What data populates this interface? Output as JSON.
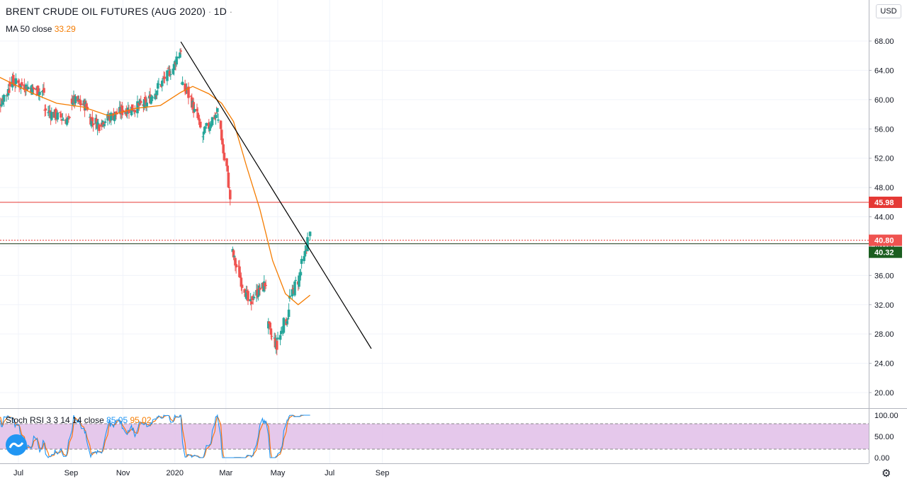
{
  "header": {
    "title": "BRENT CRUDE OIL FUTURES (AUG 2020)",
    "sep": "·",
    "interval": "1D",
    "ma_label": "MA 50 close",
    "ma_value": "33.29"
  },
  "stoch": {
    "label": "Stoch RSI 3 3 14 14 close",
    "k_value": "85.05",
    "d_value": "95.02"
  },
  "currency": "USD",
  "colors": {
    "up": "#26a69a",
    "down": "#ef5350",
    "ma": "#f57c00",
    "stoch_k": "#2196f3",
    "stoch_d": "#ff6d00",
    "stoch_band": "#e1bee7",
    "resistance": "#e53935",
    "support": "#1b3a1b",
    "trendline": "#000000"
  },
  "chart_data": [
    {
      "type": "candlestick",
      "y_ticks": [
        "68.00",
        "64.00",
        "60.00",
        "56.00",
        "52.00",
        "48.00",
        "44.00",
        "40.00",
        "36.00",
        "32.00",
        "28.00",
        "24.00",
        "20.00"
      ],
      "x_ticks": [
        "Jul",
        "Sep",
        "Nov",
        "2020",
        "Mar",
        "May",
        "Jul",
        "Sep"
      ],
      "ylim": [
        20,
        68
      ],
      "price_tags": [
        {
          "label": "45.98",
          "value": 45.98,
          "kind": "resistance"
        },
        {
          "label": "40.80",
          "value": 40.8,
          "kind": "last"
        },
        {
          "label": "40.32",
          "value": 40.32,
          "kind": "support"
        }
      ],
      "horizontal_lines": [
        {
          "value": 45.98,
          "style": "solid"
        },
        {
          "value": 40.8,
          "style": "dotted"
        },
        {
          "value": 40.32,
          "style": "solid"
        }
      ],
      "trendline": {
        "start": [
          "2020-01-08",
          67.9
        ],
        "end": [
          "2020-08-19",
          26.0
        ]
      },
      "segments": [
        {
          "from": "2019-06-03",
          "to": "2019-06-20",
          "start": 58.5,
          "end": 61.5
        },
        {
          "from": "2019-06-21",
          "to": "2019-07-31",
          "start": 62.5,
          "end": 61.0
        },
        {
          "from": "2019-08-01",
          "to": "2019-08-31",
          "start": 58.5,
          "end": 57.0
        },
        {
          "from": "2019-09-01",
          "to": "2019-09-20",
          "start": 60.0,
          "end": 59.0
        },
        {
          "from": "2019-09-21",
          "to": "2019-10-05",
          "start": 57.5,
          "end": 56.5
        },
        {
          "from": "2019-10-06",
          "to": "2019-10-31",
          "start": 57.0,
          "end": 58.5
        },
        {
          "from": "2019-11-01",
          "to": "2019-11-30",
          "start": 58.5,
          "end": 59.5
        },
        {
          "from": "2019-12-01",
          "to": "2019-12-31",
          "start": 60.0,
          "end": 64.5
        },
        {
          "from": "2020-01-01",
          "to": "2020-01-08",
          "start": 65.0,
          "end": 67.0
        },
        {
          "from": "2020-01-09",
          "to": "2020-01-14",
          "start": 62.0,
          "end": 61.0
        },
        {
          "from": "2020-01-15",
          "to": "2020-01-31",
          "start": 61.5,
          "end": 56.0
        },
        {
          "from": "2020-02-01",
          "to": "2020-02-20",
          "start": 55.0,
          "end": 58.5
        },
        {
          "from": "2020-02-21",
          "to": "2020-03-06",
          "start": 57.0,
          "end": 46.5
        },
        {
          "from": "2020-03-07",
          "to": "2020-03-31",
          "start": 39.0,
          "end": 31.5
        },
        {
          "from": "2020-04-01",
          "to": "2020-04-17",
          "start": 33.0,
          "end": 35.0
        },
        {
          "from": "2020-04-18",
          "to": "2020-04-30",
          "start": 29.0,
          "end": 26.0
        },
        {
          "from": "2020-05-01",
          "to": "2020-05-14",
          "start": 27.5,
          "end": 31.0
        },
        {
          "from": "2020-05-15",
          "to": "2020-05-28",
          "start": 33.0,
          "end": 36.5
        },
        {
          "from": "2020-05-29",
          "to": "2020-06-08",
          "start": 37.5,
          "end": 41.5
        }
      ],
      "ma50": [
        [
          "2019-06-01",
          63.5
        ],
        [
          "2019-07-15",
          61.0
        ],
        [
          "2019-08-15",
          59.5
        ],
        [
          "2019-09-15",
          59.0
        ],
        [
          "2019-10-15",
          57.8
        ],
        [
          "2019-11-15",
          58.8
        ],
        [
          "2019-12-15",
          59.2
        ],
        [
          "2020-01-08",
          61.0
        ],
        [
          "2020-01-22",
          61.8
        ],
        [
          "2020-02-10",
          60.8
        ],
        [
          "2020-02-25",
          59.5
        ],
        [
          "2020-03-10",
          57.0
        ],
        [
          "2020-03-25",
          51.0
        ],
        [
          "2020-04-10",
          45.0
        ],
        [
          "2020-04-25",
          38.0
        ],
        [
          "2020-05-10",
          33.5
        ],
        [
          "2020-05-25",
          32.0
        ],
        [
          "2020-06-08",
          33.3
        ]
      ]
    },
    {
      "type": "line",
      "name": "Stoch RSI",
      "y_ticks": [
        "100.00",
        "50.00",
        "0.00"
      ],
      "ylim": [
        0,
        100
      ],
      "bands": [
        20,
        80
      ]
    }
  ]
}
